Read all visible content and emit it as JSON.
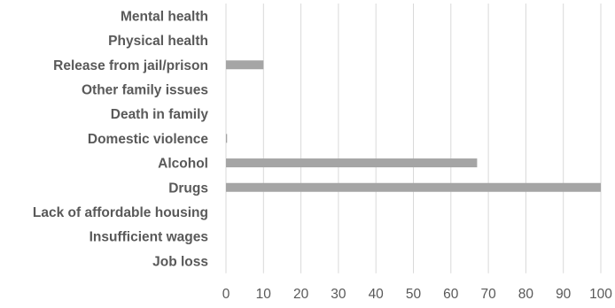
{
  "chart_data": {
    "type": "bar",
    "orientation": "horizontal",
    "categories": [
      "Job loss",
      "Insufficient wages",
      "Lack of affordable housing",
      "Drugs",
      "Alcohol",
      "Domestic violence",
      "Death in family",
      "Other family issues",
      "Release from jail/prison",
      "Physical health",
      "Mental health"
    ],
    "values": [
      0,
      0,
      0,
      100,
      67,
      0.3,
      0,
      0,
      10,
      0,
      0
    ],
    "xlim": [
      0,
      100
    ],
    "x_ticks": [
      0,
      10,
      20,
      30,
      40,
      50,
      60,
      70,
      80,
      90,
      100
    ],
    "grid": true,
    "bar_color": "#a5a5a5",
    "title": "",
    "xlabel": "",
    "ylabel": ""
  }
}
